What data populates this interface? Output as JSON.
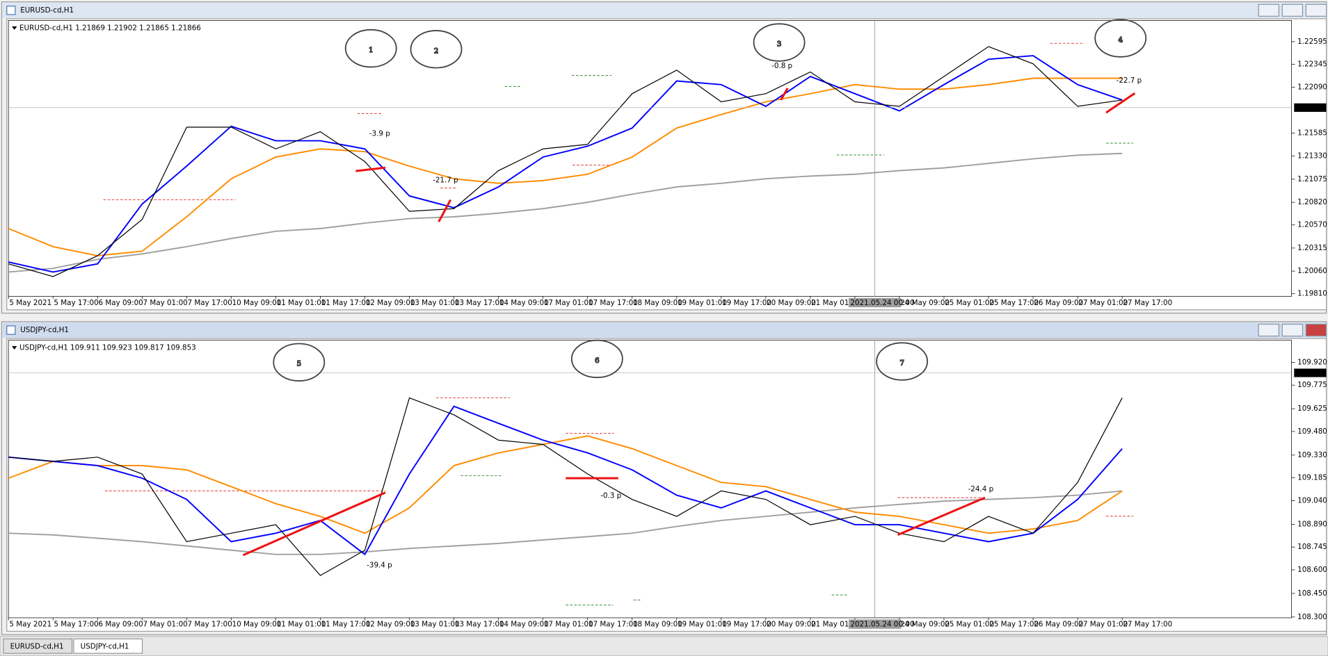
{
  "chart_data": [
    {
      "type": "line",
      "window_title": "EURUSD-cd,H1",
      "header": "EURUSD-cd,H1  1.21869 1.21902 1.21865 1.21866",
      "last_price": 1.21866,
      "crosshair_label": "2021.05.24 00:00",
      "categories": [
        "5 May 2021",
        "5 May 17:00",
        "6 May 09:00",
        "7 May 01:00",
        "7 May 17:00",
        "10 May 09:00",
        "11 May 01:00",
        "11 May 17:00",
        "12 May 09:00",
        "13 May 01:00",
        "13 May 17:00",
        "14 May 09:00",
        "17 May 01:00",
        "17 May 17:00",
        "18 May 09:00",
        "19 May 01:00",
        "19 May 17:00",
        "20 May 09:00",
        "21 May 01:00",
        null,
        "24 May 09:00",
        "25 May 01:00",
        "25 May 17:00",
        "26 May 09:00",
        "27 May 01:00",
        "27 May 17:00"
      ],
      "series": [
        {
          "name": "EURUSD-cd",
          "color": "#000000",
          "values": [
            1.2014,
            1.2,
            1.2023,
            1.2063,
            1.2165,
            1.2165,
            1.2141,
            1.216,
            1.2127,
            1.2072,
            1.2075,
            1.2117,
            1.2141,
            1.2146,
            1.2202,
            1.2228,
            1.2193,
            1.2202,
            1.2226,
            1.2193,
            1.2188,
            1.2221,
            1.2254,
            1.2235,
            1.2188,
            1.2195
          ]
        },
        {
          "name": "MA fast",
          "color": "#0000ff",
          "values": [
            1.2016,
            1.2005,
            1.2014,
            1.208,
            1.2122,
            1.2166,
            1.215,
            1.215,
            1.2141,
            1.2089,
            1.2076,
            1.2099,
            1.2132,
            1.2144,
            1.2164,
            1.2216,
            1.2212,
            1.2188,
            1.2221,
            1.2202,
            1.2183,
            1.2212,
            1.224,
            1.2244,
            1.2212,
            1.2195
          ]
        },
        {
          "name": "MA medium",
          "color": "#ff8c00",
          "values": [
            1.2053,
            1.2033,
            1.2023,
            1.2028,
            1.2066,
            1.2108,
            1.2132,
            1.2141,
            1.2138,
            1.2122,
            1.2108,
            1.2103,
            1.2106,
            1.2113,
            1.2132,
            1.2164,
            1.2179,
            1.2193,
            1.2202,
            1.2212,
            1.2207,
            1.2207,
            1.2212,
            1.2219,
            1.2219,
            1.2219
          ]
        },
        {
          "name": "MA slow",
          "color": "#a0a0a0",
          "values": [
            1.2005,
            1.2009,
            1.2019,
            1.2025,
            1.2033,
            1.2042,
            1.205,
            1.2053,
            1.2059,
            1.2064,
            1.2066,
            1.207,
            1.2075,
            1.2082,
            1.2091,
            1.2099,
            1.2103,
            1.2108,
            1.2111,
            1.2113,
            1.2117,
            1.212,
            1.2125,
            1.213,
            1.2134,
            1.2136
          ]
        }
      ],
      "ylim": [
        1.19782,
        1.2281
      ],
      "yticks": [
        1.22595,
        1.22345,
        {
          "value": 1.2209,
          "label": "1.22090"
        },
        1.21585,
        {
          "value": 1.2133,
          "label": "1.21330"
        },
        1.21075,
        {
          "value": 1.2082,
          "label": "1.20820"
        },
        {
          "value": 1.2057,
          "label": "1.20570"
        },
        1.20315,
        {
          "value": 1.2006,
          "label": "1.20060"
        },
        {
          "value": 1.1981,
          "label": "1.19810"
        }
      ],
      "annotations": [
        "-3.9 p",
        "-21.7 p",
        "-0.8 p",
        "-22.7 p"
      ],
      "markers": [
        "1",
        "2",
        "3",
        "4"
      ]
    },
    {
      "type": "line",
      "window_title": "USDJPY-cd,H1",
      "header": "USDJPY-cd,H1  109.911 109.923 109.817 109.853",
      "last_price": 109.853,
      "crosshair_label": "2021.05.24 00:00",
      "categories": [
        "5 May 2021",
        "5 May 17:00",
        "6 May 09:00",
        "7 May 01:00",
        "7 May 17:00",
        "10 May 09:00",
        "11 May 01:00",
        "11 May 17:00",
        "12 May 09:00",
        "13 May 01:00",
        "13 May 17:00",
        "14 May 09:00",
        "17 May 01:00",
        "17 May 17:00",
        "18 May 09:00",
        "19 May 01:00",
        "19 May 17:00",
        "20 May 09:00",
        "21 May 01:00",
        null,
        "24 May 09:00",
        "25 May 01:00",
        "25 May 17:00",
        "26 May 09:00",
        "27 May 01:00",
        "27 May 17:00"
      ],
      "series": [
        {
          "name": "USDJPY-cd",
          "color": "#000000",
          "values": [
            109.317,
            109.29,
            109.317,
            109.21,
            108.779,
            108.833,
            108.887,
            108.564,
            108.725,
            109.694,
            109.586,
            109.425,
            109.398,
            109.21,
            109.048,
            108.94,
            109.102,
            109.048,
            108.887,
            108.94,
            108.833,
            108.779,
            108.94,
            108.833,
            109.156,
            109.694
          ]
        },
        {
          "name": "MA fast",
          "color": "#0000ff",
          "values": [
            109.317,
            109.29,
            109.263,
            109.183,
            109.048,
            108.779,
            108.833,
            108.914,
            108.698,
            109.21,
            109.64,
            109.532,
            109.425,
            109.344,
            109.236,
            109.075,
            108.994,
            109.102,
            108.994,
            108.887,
            108.887,
            108.833,
            108.779,
            108.833,
            109.048,
            109.371
          ]
        },
        {
          "name": "MA medium",
          "color": "#ff8c00",
          "values": [
            109.183,
            109.29,
            109.263,
            109.263,
            109.236,
            109.129,
            109.021,
            108.94,
            108.833,
            108.994,
            109.263,
            109.344,
            109.398,
            109.452,
            109.371,
            109.263,
            109.156,
            109.129,
            109.048,
            108.967,
            108.94,
            108.887,
            108.833,
            108.86,
            108.914,
            109.102
          ]
        },
        {
          "name": "MA slow",
          "color": "#a0a0a0",
          "values": [
            108.833,
            108.822,
            108.801,
            108.779,
            108.752,
            108.725,
            108.698,
            108.698,
            108.714,
            108.736,
            108.752,
            108.768,
            108.79,
            108.811,
            108.833,
            108.876,
            108.914,
            108.94,
            108.967,
            108.994,
            109.016,
            109.037,
            109.048,
            109.059,
            109.075,
            109.102
          ]
        }
      ],
      "ylim": [
        108.295,
        110.055
      ],
      "yticks": [
        {
          "value": 109.92,
          "label": "109.920"
        },
        109.775,
        109.625,
        {
          "value": 109.48,
          "label": "109.480"
        },
        {
          "value": 109.33,
          "label": "109.330"
        },
        109.185,
        {
          "value": 109.04,
          "label": "109.040"
        },
        {
          "value": 108.89,
          "label": "108.890"
        },
        108.745,
        {
          "value": 108.6,
          "label": "108.600"
        },
        {
          "value": 108.45,
          "label": "108.450"
        },
        {
          "value": 108.3,
          "label": "108.300"
        }
      ],
      "annotations": [
        "-39.4 p",
        "-0.3 p",
        "-24.4 p"
      ],
      "markers": [
        "5",
        "6",
        "7"
      ]
    }
  ],
  "tabs": [
    "EURUSD-cd,H1",
    "USDJPY-cd,H1"
  ]
}
